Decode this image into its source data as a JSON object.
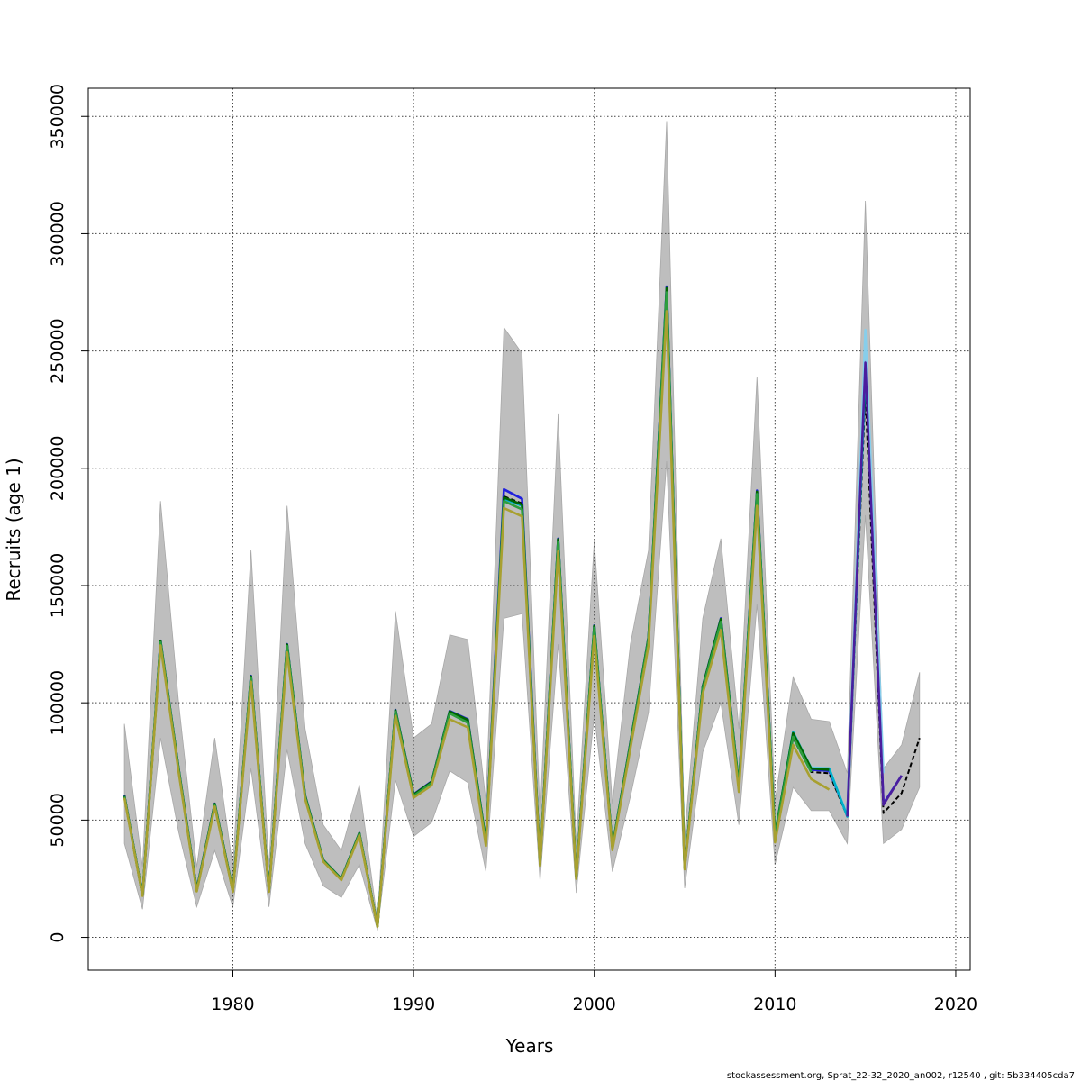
{
  "chart_data": {
    "type": "line",
    "title": "",
    "xlabel": "Years",
    "ylabel": "Recruits (age 1)",
    "xlim": [
      1972,
      2020.8
    ],
    "ylim": [
      -14000,
      362000
    ],
    "xticks": [
      1980,
      1990,
      2000,
      2010,
      2020
    ],
    "yticks": [
      0,
      50000,
      100000,
      150000,
      200000,
      250000,
      300000,
      350000
    ],
    "xtick_labels": [
      "1980",
      "1990",
      "2000",
      "2010",
      "2020"
    ],
    "ytick_labels": [
      "0",
      "50000",
      "100000",
      "150000",
      "200000",
      "250000",
      "300000",
      "350000"
    ],
    "grid": true,
    "footer": "stockassessment.org, Sprat_22-32_2020_an002, r12540 , git: 5b334405cda7",
    "confidence_band": {
      "color": "#bebebe",
      "x": [
        1974,
        1975,
        1976,
        1977,
        1978,
        1979,
        1980,
        1981,
        1982,
        1983,
        1984,
        1985,
        1986,
        1987,
        1988,
        1989,
        1990,
        1991,
        1992,
        1993,
        1994,
        1995,
        1996,
        1997,
        1998,
        1999,
        2000,
        2001,
        2002,
        2003,
        2004,
        2005,
        2006,
        2007,
        2008,
        2009,
        2010,
        2011,
        2012,
        2013,
        2014,
        2015,
        2016,
        2017,
        2018
      ],
      "lower": [
        40000,
        12000,
        85000,
        45000,
        13000,
        37000,
        13000,
        72000,
        13000,
        80000,
        40000,
        22000,
        17000,
        31000,
        3000,
        67000,
        43000,
        49000,
        71000,
        66000,
        28000,
        136000,
        138000,
        24000,
        125000,
        19000,
        95000,
        28000,
        60000,
        96000,
        203000,
        21000,
        79000,
        100000,
        48000,
        142000,
        31000,
        64000,
        54000,
        54000,
        40000,
        180000,
        40000,
        46000,
        64000
      ],
      "upper": [
        91000,
        30000,
        186000,
        100000,
        30000,
        85000,
        30000,
        165000,
        30000,
        184000,
        89000,
        48000,
        37000,
        65000,
        7000,
        139000,
        85000,
        91000,
        129000,
        127000,
        58000,
        260000,
        249000,
        52000,
        223000,
        40000,
        169000,
        57000,
        125000,
        165000,
        348000,
        43000,
        136000,
        170000,
        89000,
        239000,
        58000,
        111000,
        93000,
        92000,
        70000,
        314000,
        72000,
        82000,
        113000
      ]
    },
    "series": [
      {
        "name": "run-blue",
        "color": "#2020dd",
        "x": [
          1974,
          1975,
          1976,
          1977,
          1978,
          1979,
          1980,
          1981,
          1982,
          1983,
          1984,
          1985,
          1986,
          1987,
          1988,
          1989,
          1990,
          1991,
          1992,
          1993,
          1994,
          1995,
          1996,
          1997,
          1998,
          1999,
          2000,
          2001,
          2002,
          2003,
          2004,
          2005,
          2006,
          2007,
          2008,
          2009,
          2010,
          2011,
          2012,
          2013,
          2014,
          2015,
          2016,
          2017
        ],
        "values": [
          60500,
          18000,
          126500,
          72000,
          20500,
          57000,
          20000,
          111500,
          20000,
          125000,
          60500,
          33000,
          25000,
          44500,
          4800,
          97000,
          61000,
          66500,
          96500,
          93000,
          41000,
          191000,
          187000,
          31500,
          170000,
          26000,
          133000,
          38500,
          83000,
          128000,
          277500,
          30000,
          107000,
          136000,
          65000,
          190500,
          44000,
          87000,
          71500,
          71000,
          52000,
          247000,
          57000,
          69000
        ]
      },
      {
        "name": "run-black-dashed",
        "color": "#000000",
        "dashed": true,
        "x": [
          1974,
          1975,
          1976,
          1977,
          1978,
          1979,
          1980,
          1981,
          1982,
          1983,
          1984,
          1985,
          1986,
          1987,
          1988,
          1989,
          1990,
          1991,
          1992,
          1993,
          1994,
          1995,
          1996,
          1997,
          1998,
          1999,
          2000,
          2001,
          2002,
          2003,
          2004,
          2005,
          2006,
          2007,
          2008,
          2009,
          2010,
          2011,
          2012,
          2013,
          2014,
          2015,
          2016,
          2017,
          2018
        ],
        "values": [
          60000,
          18000,
          126000,
          71500,
          20000,
          56500,
          19800,
          111000,
          19800,
          124500,
          60000,
          32800,
          24800,
          44200,
          4700,
          96500,
          60500,
          66000,
          96000,
          92000,
          40500,
          188000,
          185000,
          31200,
          169000,
          25800,
          132500,
          38200,
          82500,
          127500,
          276000,
          29800,
          106500,
          135000,
          64500,
          189500,
          43500,
          85000,
          70500,
          70000,
          51500,
          232000,
          53000,
          61500,
          85000
        ]
      },
      {
        "name": "run-light-blue",
        "color": "#87ceeb",
        "x": [
          2010,
          2011,
          2012,
          2013,
          2014,
          2015,
          2016
        ],
        "values": [
          44000,
          86500,
          72500,
          72000,
          52000,
          259000,
          70000
        ]
      },
      {
        "name": "run-cyan",
        "color": "#00b0c8",
        "x": [
          1974,
          1975,
          1976,
          1977,
          1978,
          1979,
          1980,
          1981,
          1982,
          1983,
          1984,
          1985,
          1986,
          1987,
          1988,
          1989,
          1990,
          1991,
          1992,
          1993,
          1994,
          1995,
          1996,
          1997,
          1998,
          1999,
          2000,
          2001,
          2002,
          2003,
          2004,
          2005,
          2006,
          2007,
          2008,
          2009,
          2010,
          2011,
          2012,
          2013,
          2014,
          2015
        ],
        "values": [
          60200,
          18000,
          126200,
          71800,
          20200,
          56800,
          19900,
          111200,
          19900,
          124700,
          60200,
          32900,
          24900,
          44300,
          4750,
          96700,
          60700,
          66200,
          96200,
          92500,
          40700,
          187000,
          184000,
          31300,
          169500,
          25900,
          132700,
          38300,
          82700,
          127700,
          276500,
          29900,
          106700,
          135500,
          64700,
          189700,
          43700,
          87500,
          72000,
          72000,
          51500,
          240000
        ]
      },
      {
        "name": "run-dark-green",
        "color": "#006400",
        "x": [
          1974,
          1975,
          1976,
          1977,
          1978,
          1979,
          1980,
          1981,
          1982,
          1983,
          1984,
          1985,
          1986,
          1987,
          1988,
          1989,
          1990,
          1991,
          1992,
          1993,
          1994,
          1995,
          1996,
          1997,
          1998,
          1999,
          2000,
          2001,
          2002,
          2003,
          2004,
          2005,
          2006,
          2007,
          2008,
          2009,
          2010,
          2011,
          2012,
          2013
        ],
        "values": [
          60300,
          18000,
          126300,
          71900,
          20300,
          56900,
          19950,
          111300,
          19950,
          124800,
          60300,
          32950,
          24950,
          44400,
          4780,
          96800,
          60800,
          66300,
          96300,
          92700,
          40800,
          187500,
          184500,
          31400,
          169700,
          25950,
          132800,
          38400,
          82800,
          127800,
          276800,
          29950,
          106800,
          135700,
          64800,
          190000,
          43800,
          87000,
          72000,
          71500
        ]
      },
      {
        "name": "run-green",
        "color": "#2e9e3e",
        "x": [
          1974,
          1975,
          1976,
          1977,
          1978,
          1979,
          1980,
          1981,
          1982,
          1983,
          1984,
          1985,
          1986,
          1987,
          1988,
          1989,
          1990,
          1991,
          1992,
          1993,
          1994,
          1995,
          1996,
          1997,
          1998,
          1999,
          2000,
          2001,
          2002,
          2003,
          2004,
          2005,
          2006,
          2007,
          2008,
          2009,
          2010,
          2011,
          2012
        ],
        "values": [
          60000,
          17900,
          125800,
          71400,
          19900,
          56400,
          19700,
          110800,
          19700,
          124200,
          59900,
          32700,
          24700,
          44100,
          4650,
          96200,
          60300,
          65800,
          95500,
          91500,
          40200,
          186000,
          182500,
          31000,
          168500,
          25600,
          132000,
          38000,
          82000,
          127000,
          275000,
          29700,
          106000,
          134500,
          64200,
          189000,
          43200,
          85500,
          70500
        ]
      },
      {
        "name": "run-olive",
        "color": "#a8a030",
        "x": [
          1974,
          1975,
          1976,
          1977,
          1978,
          1979,
          1980,
          1981,
          1982,
          1983,
          1984,
          1985,
          1986,
          1987,
          1988,
          1989,
          1990,
          1991,
          1992,
          1993,
          1994,
          1995,
          1996,
          1997,
          1998,
          1999,
          2000,
          2001,
          2002,
          2003,
          2004,
          2005,
          2006,
          2007,
          2008,
          2009,
          2010,
          2011,
          2012,
          2013
        ],
        "values": [
          59500,
          17700,
          124500,
          70500,
          19600,
          55800,
          19400,
          109000,
          19400,
          121500,
          59000,
          32300,
          24400,
          43500,
          4500,
          94500,
          59500,
          64800,
          93000,
          89500,
          39000,
          183000,
          179500,
          30500,
          164500,
          25000,
          128500,
          37200,
          80500,
          124500,
          267000,
          29000,
          104000,
          131000,
          62000,
          184000,
          40500,
          82000,
          67500,
          63000
        ]
      },
      {
        "name": "run-indigo",
        "color": "#4b1e9e",
        "x": [
          2014,
          2015,
          2016,
          2017
        ],
        "values": [
          51500,
          245000,
          56500,
          69000
        ]
      }
    ]
  }
}
